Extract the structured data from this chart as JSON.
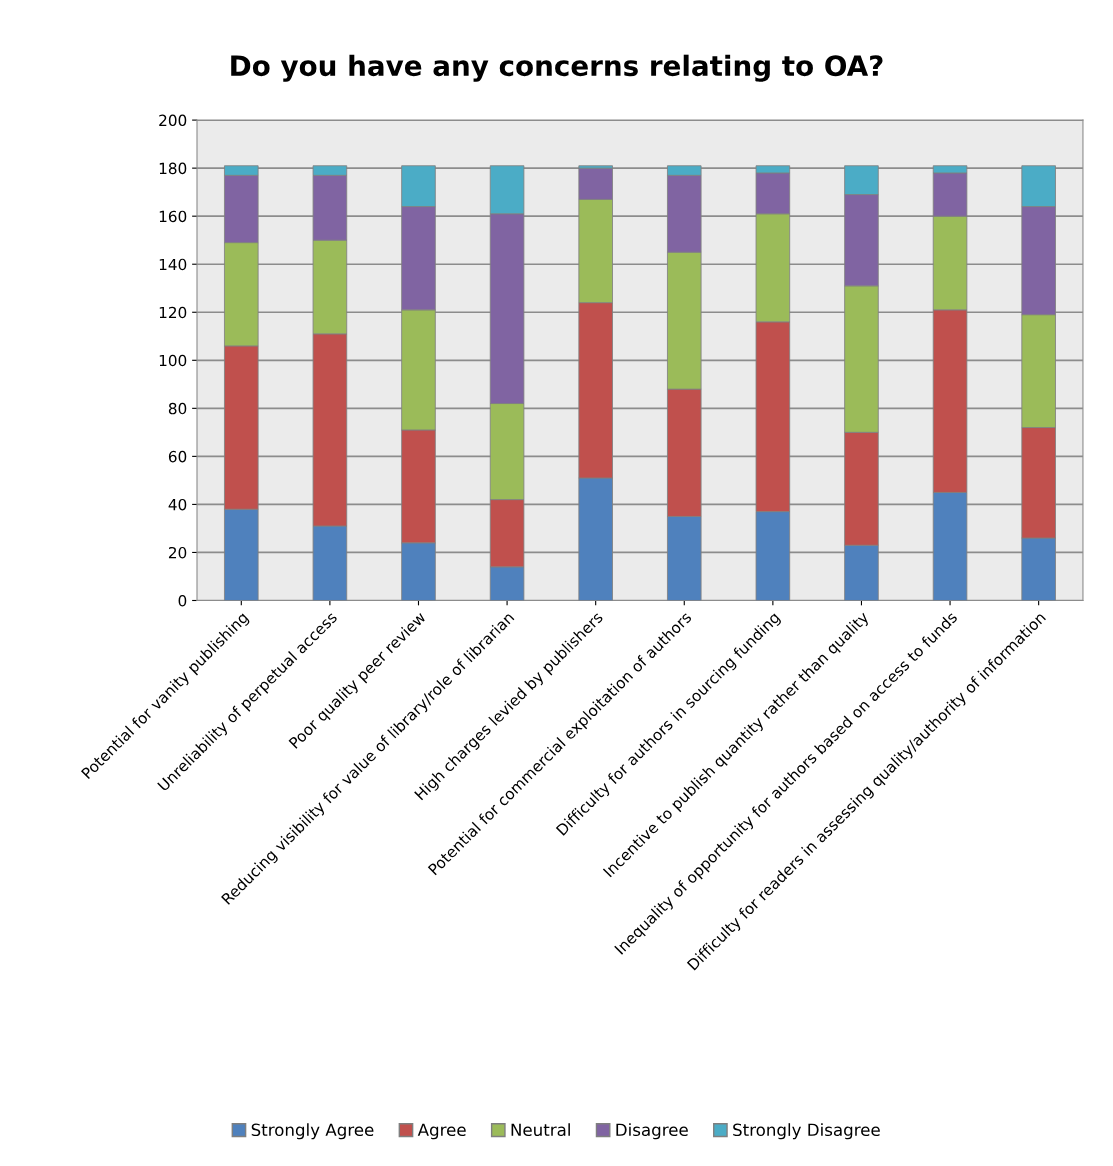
{
  "chart_data": {
    "type": "bar",
    "title": "Do you have any concerns relating to OA?",
    "stacked": true,
    "categories": [
      "Potential for vanity publishing",
      "Unreliability of perpetual access",
      "Poor quality peer review",
      "Reducing visibility for value of library/role of librarian",
      "High charges levied by publishers",
      "Potential for commercial exploitation of authors",
      "Difficulty for authors in sourcing funding",
      "Incentive to publish quantity rather than quality",
      "Inequality of opportunity for authors based on access to funds",
      "Difficulty for readers in assessing quality/authority of information"
    ],
    "series": [
      {
        "name": "Strongly Agree",
        "color": "#4f81bd",
        "values": [
          38,
          31,
          24,
          14,
          51,
          35,
          37,
          23,
          45,
          26
        ]
      },
      {
        "name": "Agree",
        "color": "#c0504d",
        "values": [
          68,
          80,
          47,
          28,
          73,
          53,
          79,
          47,
          76,
          46
        ]
      },
      {
        "name": "Neutral",
        "color": "#9bbb59",
        "values": [
          43,
          39,
          50,
          40,
          43,
          57,
          45,
          61,
          39,
          47
        ]
      },
      {
        "name": "Disagree",
        "color": "#8064a2",
        "values": [
          28,
          27,
          43,
          79,
          13,
          32,
          17,
          38,
          18,
          45
        ]
      },
      {
        "name": "Strongly Disagree",
        "color": "#4bacc6",
        "values": [
          4,
          4,
          17,
          20,
          1,
          4,
          3,
          12,
          3,
          17
        ]
      }
    ],
    "ylim": [
      0,
      200
    ],
    "yticks": [
      0,
      20,
      40,
      60,
      80,
      100,
      120,
      140,
      160,
      180,
      200
    ],
    "grid": "y",
    "legend": "bottom"
  }
}
